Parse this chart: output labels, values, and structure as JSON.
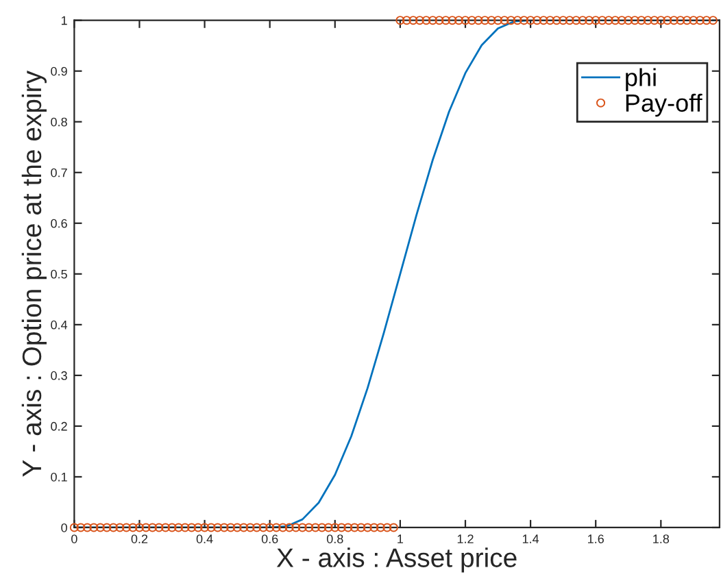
{
  "chart_data": {
    "type": "line",
    "xlabel": "X - axis : Asset price",
    "ylabel": "Y - axis : Option price at the expiry",
    "xlim": [
      0,
      1.98
    ],
    "ylim": [
      0,
      1
    ],
    "xticks": [
      0,
      0.2,
      0.4,
      0.6,
      0.8,
      1,
      1.2,
      1.4,
      1.6,
      1.8
    ],
    "yticks": [
      0,
      0.1,
      0.2,
      0.3,
      0.4,
      0.5,
      0.6,
      0.7,
      0.8,
      0.9,
      1
    ],
    "grid": false,
    "legend": "top right",
    "series": [
      {
        "name": "phi",
        "color": "#0072bd",
        "marker": "none",
        "x": [
          0,
          0.6,
          0.65,
          0.7,
          0.75,
          0.8,
          0.85,
          0.9,
          0.95,
          1.0,
          1.05,
          1.1,
          1.15,
          1.2,
          1.25,
          1.3,
          1.35,
          1.4,
          1.98
        ],
        "values": [
          0,
          0,
          0.002,
          0.016,
          0.049,
          0.104,
          0.18,
          0.275,
          0.384,
          0.5,
          0.616,
          0.725,
          0.82,
          0.896,
          0.951,
          0.984,
          0.998,
          1,
          1
        ]
      },
      {
        "name": "Pay-off",
        "type": "scatter",
        "color": "#d95319",
        "marker": "circle",
        "x": [
          0,
          0.02,
          0.04,
          0.06,
          0.08,
          0.1,
          0.12,
          0.14,
          0.16,
          0.18,
          0.2,
          0.22,
          0.24,
          0.26,
          0.28,
          0.3,
          0.32,
          0.34,
          0.36,
          0.38,
          0.4,
          0.42,
          0.44,
          0.46,
          0.48,
          0.5,
          0.52,
          0.54,
          0.56,
          0.58,
          0.6,
          0.62,
          0.64,
          0.66,
          0.68,
          0.7,
          0.72,
          0.74,
          0.76,
          0.78,
          0.8,
          0.82,
          0.84,
          0.86,
          0.88,
          0.9,
          0.92,
          0.94,
          0.96,
          0.98,
          1.0,
          1.02,
          1.04,
          1.06,
          1.08,
          1.1,
          1.12,
          1.14,
          1.16,
          1.18,
          1.2,
          1.22,
          1.24,
          1.26,
          1.28,
          1.3,
          1.32,
          1.34,
          1.36,
          1.38,
          1.4,
          1.42,
          1.44,
          1.46,
          1.48,
          1.5,
          1.52,
          1.54,
          1.56,
          1.58,
          1.6,
          1.62,
          1.64,
          1.66,
          1.68,
          1.7,
          1.72,
          1.74,
          1.76,
          1.78,
          1.8,
          1.82,
          1.84,
          1.86,
          1.88,
          1.9,
          1.92,
          1.94,
          1.96
        ],
        "values": [
          0,
          0,
          0,
          0,
          0,
          0,
          0,
          0,
          0,
          0,
          0,
          0,
          0,
          0,
          0,
          0,
          0,
          0,
          0,
          0,
          0,
          0,
          0,
          0,
          0,
          0,
          0,
          0,
          0,
          0,
          0,
          0,
          0,
          0,
          0,
          0,
          0,
          0,
          0,
          0,
          0,
          0,
          0,
          0,
          0,
          0,
          0,
          0,
          0,
          0,
          1,
          1,
          1,
          1,
          1,
          1,
          1,
          1,
          1,
          1,
          1,
          1,
          1,
          1,
          1,
          1,
          1,
          1,
          1,
          1,
          1,
          1,
          1,
          1,
          1,
          1,
          1,
          1,
          1,
          1,
          1,
          1,
          1,
          1,
          1,
          1,
          1,
          1,
          1,
          1,
          1,
          1,
          1,
          1,
          1,
          1,
          1,
          1,
          1
        ]
      }
    ]
  }
}
